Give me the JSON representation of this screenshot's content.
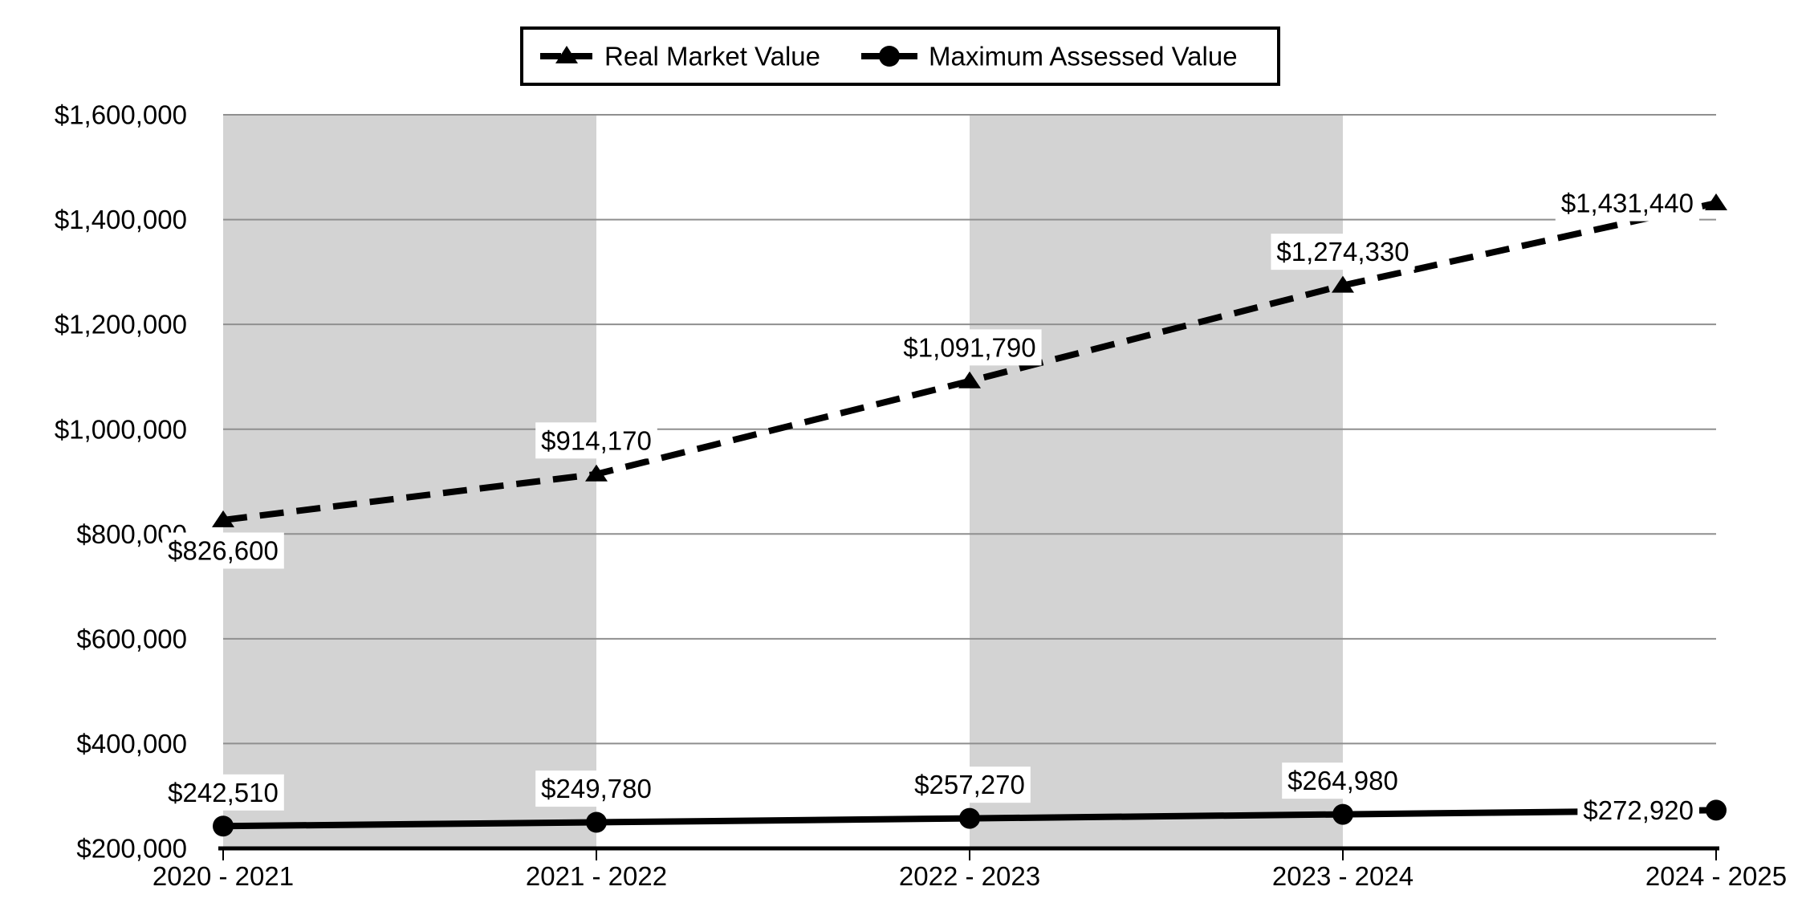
{
  "chart_data": {
    "type": "line",
    "title": "",
    "categories": [
      "2020 - 2021",
      "2021 - 2022",
      "2022 - 2023",
      "2023 - 2024",
      "2024 - 2025"
    ],
    "series": [
      {
        "name": "Real Market Value",
        "line": "dashed",
        "marker": "triangle",
        "values": [
          826600,
          914170,
          1091790,
          1274330,
          1431440
        ],
        "labels": [
          "$826,600",
          "$914,170",
          "$1,091,790",
          "$1,274,330",
          "$1,431,440"
        ],
        "label_positions": [
          "below",
          "above",
          "above",
          "above",
          "left"
        ]
      },
      {
        "name": "Maximum Assessed Value",
        "line": "solid",
        "marker": "circle",
        "values": [
          242510,
          249780,
          257270,
          264980,
          272920
        ],
        "labels": [
          "$242,510",
          "$249,780",
          "$257,270",
          "$264,980",
          "$272,920"
        ],
        "label_positions": [
          "above",
          "above",
          "above",
          "above",
          "left"
        ]
      }
    ],
    "y_axis": {
      "min": 200000,
      "max": 1600000,
      "step": 200000,
      "tick_labels": [
        "$200,000",
        "$400,000",
        "$600,000",
        "$800,000",
        "$1,000,000",
        "$1,200,000",
        "$1,400,000",
        "$1,600,000"
      ]
    },
    "shaded_bands": [
      [
        0,
        1
      ],
      [
        2,
        3
      ]
    ],
    "legend": {
      "position": "top",
      "entries": [
        "Real Market Value",
        "Maximum Assessed Value"
      ]
    },
    "grid": "horizontal",
    "colors": {
      "series": "#000000",
      "gridline": "#8f8f8f",
      "band": "#d3d3d3",
      "background": "#ffffff",
      "label_background": "#ffffff",
      "legend_border": "#000000"
    }
  }
}
